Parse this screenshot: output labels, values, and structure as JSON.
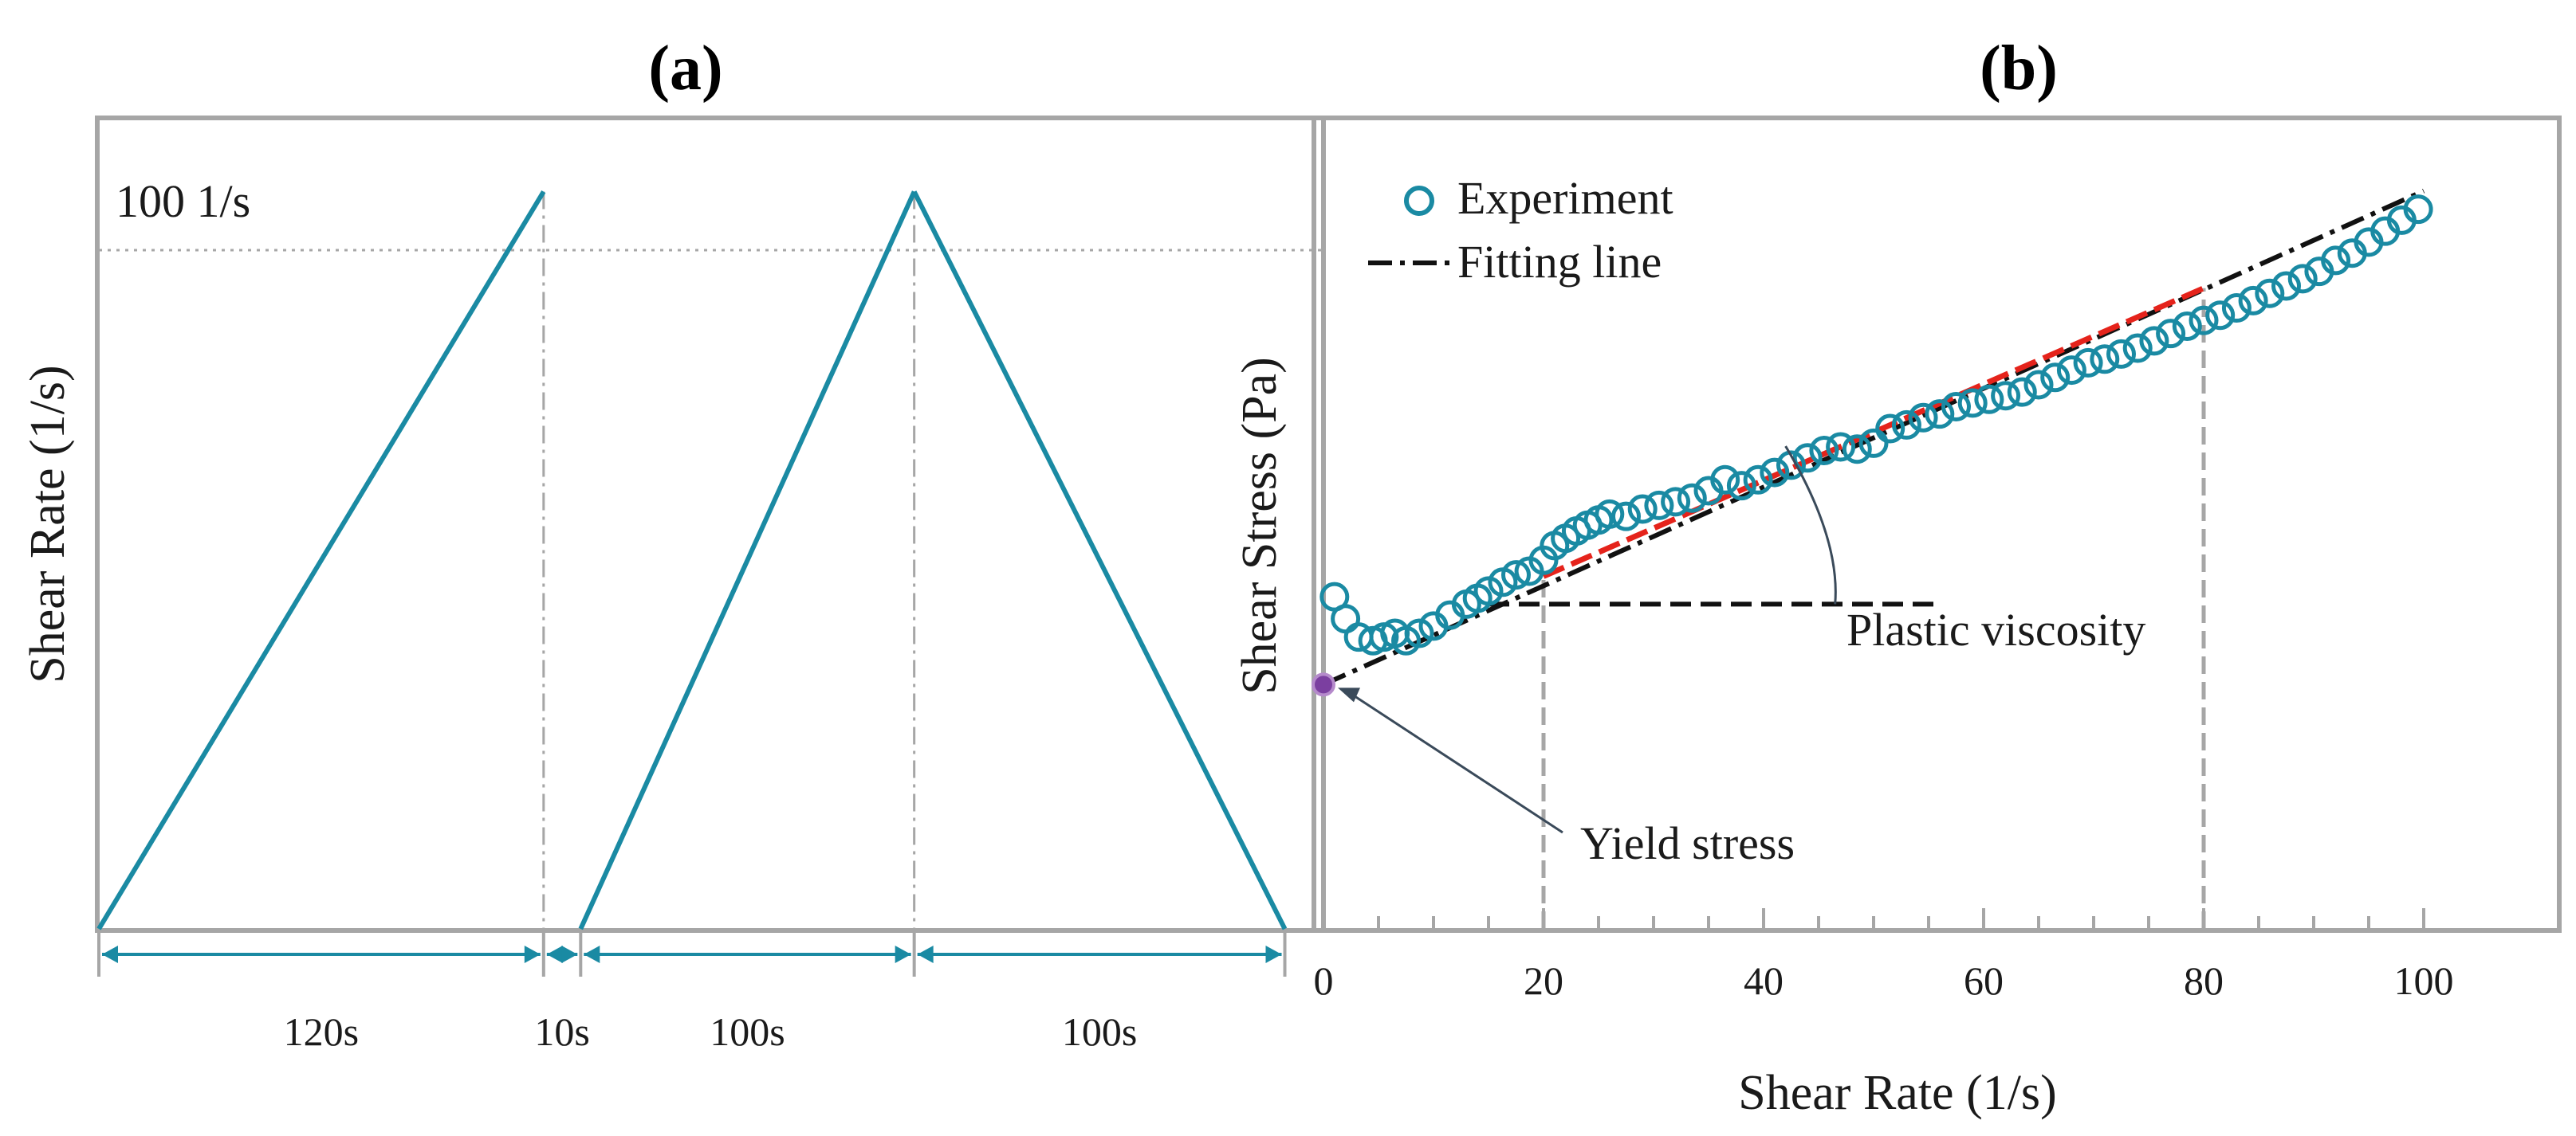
{
  "colors": {
    "teal": "#1a8aa3",
    "frame": "#a6a6a6",
    "fit": "#111111",
    "red": "#e5231b",
    "guide": "#a6a6a6",
    "yield_point": "#7b3fa0"
  },
  "chart_data": [
    {
      "id": "a",
      "type": "line",
      "title": "(a)",
      "ylabel": "Shear Rate (1/s)",
      "xlabel": "",
      "xlim": [
        0,
        330
      ],
      "ylim": [
        0,
        110
      ],
      "max_rate_label": "100 1/s",
      "protocol": {
        "x": [
          0,
          120,
          130,
          220,
          320
        ],
        "y": [
          0,
          100,
          0,
          100,
          0
        ],
        "note": "linear ramps; line breaks between 120s and 130s (rest)"
      },
      "segments": [
        {
          "start": 0,
          "end": 120,
          "label": "120s"
        },
        {
          "start": 120,
          "end": 130,
          "label": "10s"
        },
        {
          "start": 130,
          "end": 220,
          "label": "100s"
        },
        {
          "start": 220,
          "end": 320,
          "label": "100s"
        }
      ]
    },
    {
      "id": "b",
      "type": "scatter",
      "title": "(b)",
      "xlabel": "Shear Rate (1/s)",
      "ylabel": "Shear Stress (Pa)",
      "xlim": [
        0,
        100
      ],
      "ylim": [
        0,
        100
      ],
      "xticks": [
        0,
        20,
        40,
        60,
        80,
        100
      ],
      "legend": {
        "position": "top-left",
        "entries": [
          {
            "label": "Experiment",
            "marker": "open-circle"
          },
          {
            "label": "Fitting line",
            "marker": "dash-dot-line"
          }
        ]
      },
      "series": [
        {
          "name": "Experiment",
          "x": [
            1,
            2,
            3.2,
            4.5,
            5.5,
            6.5,
            7.5,
            8.7,
            10,
            11.5,
            13,
            14,
            15,
            16.3,
            17.5,
            18.7,
            20,
            21,
            22,
            23,
            24,
            25,
            26,
            27.5,
            29,
            30.5,
            32,
            33.5,
            35,
            36.5,
            38,
            39.5,
            41,
            42.5,
            44,
            45.5,
            47,
            48.5,
            50,
            51.5,
            53,
            54.5,
            56,
            57.5,
            59,
            60.5,
            62,
            63.5,
            65,
            66.5,
            68,
            69.5,
            71,
            72.5,
            74,
            75.5,
            77,
            78.5,
            80,
            81.5,
            83,
            84.5,
            86,
            87.5,
            89,
            90.5,
            92,
            93.5,
            95,
            96.5,
            98,
            99.5
          ],
          "y": [
            38,
            35,
            32.5,
            32,
            32.5,
            33,
            32,
            33,
            34,
            35.5,
            37,
            37.8,
            38.8,
            40,
            41,
            41.5,
            43,
            45,
            46,
            47,
            47.8,
            48.5,
            49.3,
            49,
            50,
            50.5,
            51,
            51.5,
            52.5,
            54,
            53.2,
            54,
            55,
            56,
            57,
            58,
            58.5,
            58.2,
            59,
            61,
            61.5,
            62.5,
            63,
            64,
            64.5,
            65,
            65.5,
            66,
            67,
            68,
            69,
            70,
            70.5,
            71.2,
            72,
            73,
            74,
            75,
            75.8,
            76.5,
            77.5,
            78.5,
            79.5,
            80.5,
            81.5,
            82.5,
            84,
            85,
            86.5,
            88,
            89.5,
            91
          ]
        },
        {
          "name": "Fitting line",
          "x": [
            0,
            100
          ],
          "y": [
            26,
            93.5
          ]
        },
        {
          "name": "Fit region (20-80)",
          "x": [
            20,
            80
          ],
          "y": [
            40.8,
            80.2
          ]
        }
      ],
      "reference_lines": {
        "horizontal_y": 37,
        "horizontal_x_range": [
          15,
          56
        ],
        "vertical_x": [
          20,
          80
        ],
        "vertical_top_y": [
          40.5,
          80.2
        ]
      },
      "annotations": [
        {
          "text": "Plastic viscosity",
          "target": "slope-angle"
        },
        {
          "text": "Yield stress",
          "target": "y-intercept",
          "point": [
            0,
            26
          ]
        }
      ]
    }
  ]
}
